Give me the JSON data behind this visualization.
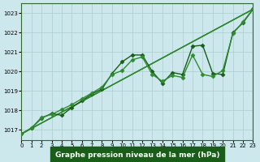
{
  "xlabel": "Graphe pression niveau de la mer (hPa)",
  "xlim": [
    0,
    23
  ],
  "ylim": [
    1016.5,
    1023.5
  ],
  "yticks": [
    1017,
    1018,
    1019,
    1020,
    1021,
    1022,
    1023
  ],
  "xticks": [
    0,
    1,
    2,
    3,
    4,
    5,
    6,
    7,
    8,
    9,
    10,
    11,
    12,
    13,
    14,
    15,
    16,
    17,
    18,
    19,
    20,
    21,
    22,
    23
  ],
  "bg_color": "#cce8ec",
  "grid_color": "#aacccc",
  "line_color_dark": "#1a5c1a",
  "line_color_light": "#2e8b2e",
  "series1_x": [
    0,
    1,
    2,
    3,
    4,
    5,
    6,
    7,
    8,
    9,
    10,
    11,
    12,
    13,
    14,
    15,
    16,
    17,
    18,
    19,
    20,
    21,
    22,
    23
  ],
  "series1_y": [
    1016.8,
    1017.1,
    1017.6,
    1017.85,
    1017.75,
    1018.15,
    1018.5,
    1018.85,
    1019.1,
    1019.9,
    1020.5,
    1020.85,
    1020.85,
    1020.0,
    1019.4,
    1019.95,
    1019.85,
    1021.3,
    1021.35,
    1019.9,
    1019.85,
    1022.0,
    1022.5,
    1023.2
  ],
  "series2_x": [
    0,
    1,
    2,
    3,
    4,
    5,
    6,
    7,
    8,
    9,
    10,
    11,
    12,
    13,
    14,
    15,
    16,
    17,
    18,
    19,
    20,
    21,
    22,
    23
  ],
  "series2_y": [
    1016.8,
    1017.1,
    1017.65,
    1017.8,
    1018.05,
    1018.3,
    1018.6,
    1018.9,
    1019.2,
    1019.85,
    1020.05,
    1020.6,
    1020.75,
    1019.85,
    1019.5,
    1019.8,
    1019.7,
    1020.85,
    1019.85,
    1019.75,
    1020.05,
    1021.95,
    1022.55,
    1023.2
  ],
  "trend_x": [
    0,
    23
  ],
  "trend_y": [
    1016.8,
    1023.2
  ],
  "marker": "D",
  "marker_size": 2.5,
  "linewidth": 1.0,
  "xlabel_bg": "#1a5c1a",
  "xlabel_fg": "#ffffff",
  "xlabel_fontsize": 6.5
}
